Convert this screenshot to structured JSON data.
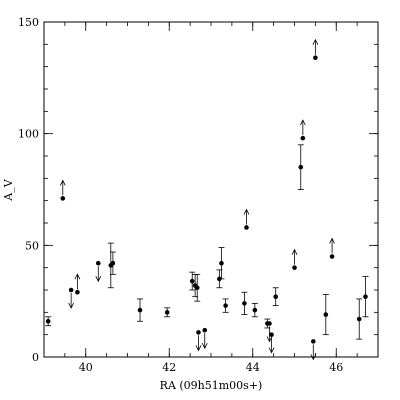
{
  "chart_data": {
    "type": "scatter",
    "xlabel": "RA (09h51m00s+)",
    "ylabel": "A_V",
    "xlim": [
      39,
      47
    ],
    "ylim": [
      0,
      150
    ],
    "xticks": [
      40,
      42,
      44,
      46
    ],
    "yticks": [
      0,
      50,
      100,
      150
    ],
    "x_minor_step": 0.5,
    "y_minor_step": 10,
    "grid": false,
    "legend": "none",
    "points": [
      {
        "x": 39.1,
        "y": 16,
        "err": 2
      },
      {
        "x": 39.45,
        "y": 71,
        "limit": "lower"
      },
      {
        "x": 39.65,
        "y": 30,
        "limit": "upper"
      },
      {
        "x": 39.8,
        "y": 29,
        "limit": "lower"
      },
      {
        "x": 40.3,
        "y": 42,
        "limit": "upper"
      },
      {
        "x": 40.6,
        "y": 41,
        "err": 10
      },
      {
        "x": 40.65,
        "y": 42,
        "err": 5
      },
      {
        "x": 41.3,
        "y": 21,
        "err": 5
      },
      {
        "x": 41.95,
        "y": 20,
        "err": 2
      },
      {
        "x": 42.55,
        "y": 34,
        "err": 4
      },
      {
        "x": 42.62,
        "y": 32,
        "err": 5
      },
      {
        "x": 42.67,
        "y": 31,
        "err": 6
      },
      {
        "x": 42.7,
        "y": 11,
        "limit": "upper"
      },
      {
        "x": 42.85,
        "y": 12,
        "limit": "upper"
      },
      {
        "x": 43.2,
        "y": 35,
        "err": 4
      },
      {
        "x": 43.25,
        "y": 42,
        "err": 7
      },
      {
        "x": 43.35,
        "y": 23,
        "err": 3
      },
      {
        "x": 43.8,
        "y": 24,
        "err": 5
      },
      {
        "x": 43.85,
        "y": 58,
        "limit": "lower"
      },
      {
        "x": 44.05,
        "y": 21,
        "err": 3
      },
      {
        "x": 44.35,
        "y": 15,
        "err": 2
      },
      {
        "x": 44.4,
        "y": 15,
        "limit": "upper"
      },
      {
        "x": 44.45,
        "y": 10,
        "limit": "upper"
      },
      {
        "x": 44.55,
        "y": 27,
        "err": 4
      },
      {
        "x": 45.0,
        "y": 40,
        "limit": "lower"
      },
      {
        "x": 45.15,
        "y": 85,
        "err": 10
      },
      {
        "x": 45.2,
        "y": 98,
        "limit": "lower"
      },
      {
        "x": 45.45,
        "y": 7,
        "limit": "upper"
      },
      {
        "x": 45.5,
        "y": 134,
        "limit": "lower"
      },
      {
        "x": 45.75,
        "y": 19,
        "err": 9
      },
      {
        "x": 45.9,
        "y": 45,
        "limit": "lower"
      },
      {
        "x": 46.55,
        "y": 17,
        "err": 9
      },
      {
        "x": 46.7,
        "y": 27,
        "err": 9
      }
    ]
  }
}
